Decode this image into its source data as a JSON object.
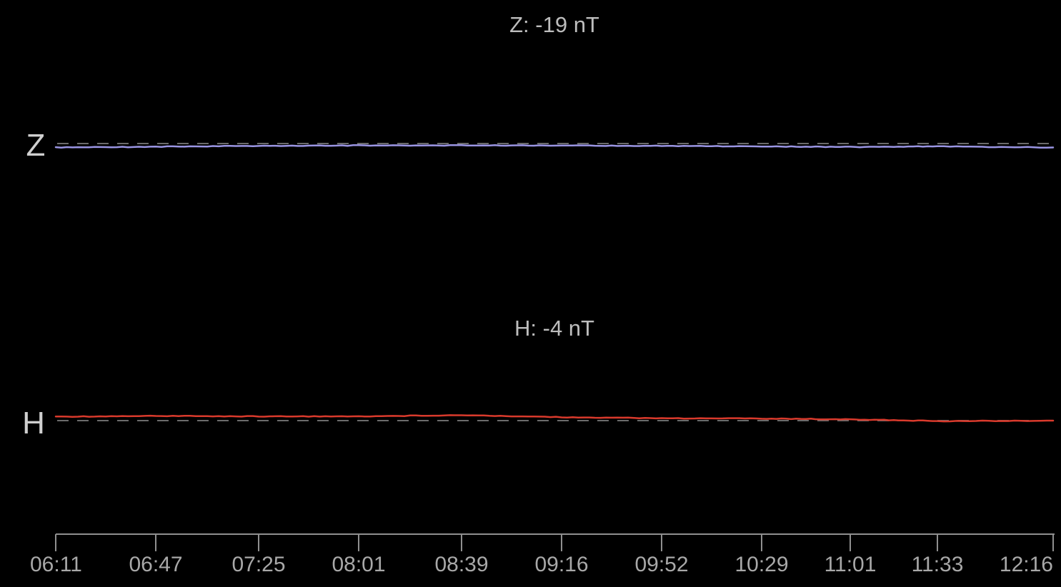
{
  "chart_data": {
    "type": "line",
    "x_ticks": [
      "06:11",
      "06:47",
      "07:25",
      "08:01",
      "08:39",
      "09:16",
      "09:52",
      "10:29",
      "11:01",
      "11:33",
      "12:16"
    ],
    "panels": [
      {
        "channel": "Z",
        "title": "Z: -19 nT",
        "color": "#9a95e3",
        "baseline": 0,
        "ylim": [
          -1.5,
          1.5
        ],
        "series": [
          {
            "x": [
              "06:11",
              "06:47",
              "07:25",
              "08:01",
              "08:39",
              "09:16",
              "09:52",
              "10:29",
              "11:01",
              "11:33",
              "12:16"
            ],
            "y": [
              -0.25,
              -0.2,
              -0.15,
              -0.12,
              -0.12,
              -0.12,
              -0.15,
              -0.18,
              -0.22,
              -0.18,
              -0.25
            ]
          }
        ]
      },
      {
        "channel": "H",
        "title": "H: -4 nT",
        "color": "#d93a2c",
        "baseline": 0,
        "ylim": [
          -1.5,
          1.5
        ],
        "series": [
          {
            "x": [
              "06:11",
              "06:47",
              "07:25",
              "08:01",
              "08:39",
              "09:16",
              "09:52",
              "10:29",
              "11:01",
              "11:33",
              "12:16"
            ],
            "y": [
              0.25,
              0.3,
              0.27,
              0.27,
              0.35,
              0.22,
              0.15,
              0.13,
              0.08,
              -0.03,
              0.0
            ]
          }
        ]
      }
    ]
  }
}
